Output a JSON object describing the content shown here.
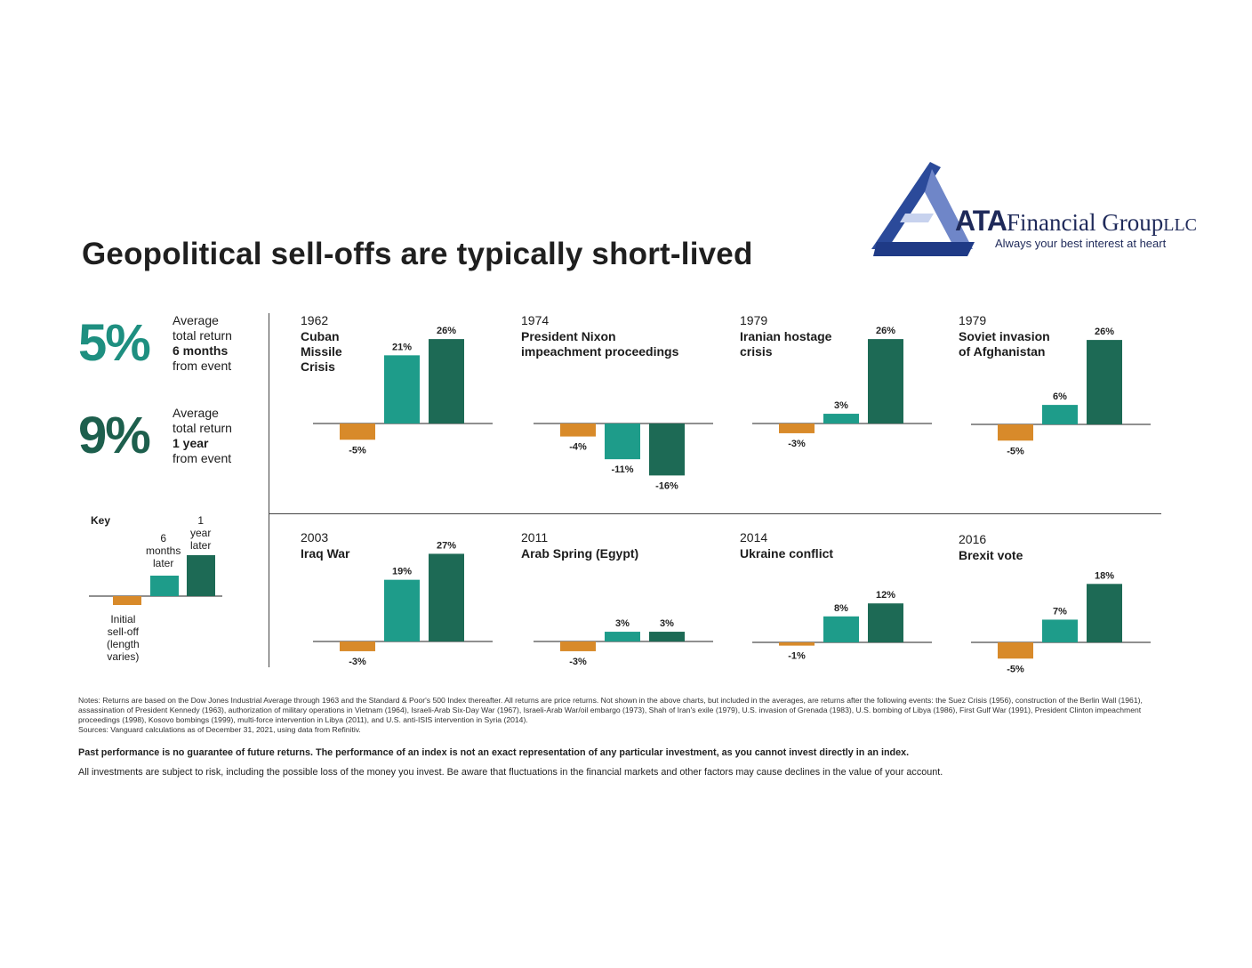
{
  "title": "Geopolitical sell-offs are typically short-lived",
  "logo": {
    "brand_bold": "ATA",
    "brand_rest": "Financial Group",
    "brand_suffix": "LLC",
    "tagline": "Always your best interest at heart"
  },
  "colors": {
    "selloff": "#d88a2a",
    "six_months": "#1e9c8a",
    "one_year": "#1d6a55",
    "teal_text": "#1e8f80",
    "dark_text": "#1d5f4d"
  },
  "stats": [
    {
      "value": "5%",
      "line1": "Average",
      "line2": "total return",
      "line3": "6 months",
      "line4": "from event"
    },
    {
      "value": "9%",
      "line1": "Average",
      "line2": "total return",
      "line3": "1 year",
      "line4": "from event"
    }
  ],
  "key": {
    "title": "Key",
    "initial": [
      "Initial",
      "sell-off",
      "(length",
      "varies)"
    ],
    "six": [
      "6",
      "months",
      "later"
    ],
    "year": [
      "1",
      "year",
      "later"
    ]
  },
  "chart_data": [
    {
      "type": "bar",
      "year": "1962",
      "title": [
        "Cuban",
        "Missile",
        "Crisis"
      ],
      "categories": [
        "Initial sell-off",
        "6 months later",
        "1 year later"
      ],
      "values": [
        -5,
        21,
        26
      ],
      "labels": [
        "-5%",
        "21%",
        "26%"
      ]
    },
    {
      "type": "bar",
      "year": "1974",
      "title": [
        "President Nixon",
        "impeachment proceedings"
      ],
      "categories": [
        "Initial sell-off",
        "6 months later",
        "1 year later"
      ],
      "values": [
        -4,
        -11,
        -16
      ],
      "labels": [
        "-4%",
        "-11%",
        "-16%"
      ]
    },
    {
      "type": "bar",
      "year": "1979",
      "title": [
        "Iranian hostage",
        "crisis"
      ],
      "categories": [
        "Initial sell-off",
        "6 months later",
        "1 year later"
      ],
      "values": [
        -3,
        3,
        26
      ],
      "labels": [
        "-3%",
        "3%",
        "26%"
      ]
    },
    {
      "type": "bar",
      "year": "1979",
      "title": [
        "Soviet invasion",
        "of Afghanistan"
      ],
      "categories": [
        "Initial sell-off",
        "6 months later",
        "1 year later"
      ],
      "values": [
        -5,
        6,
        26
      ],
      "labels": [
        "-5%",
        "6%",
        "26%"
      ]
    },
    {
      "type": "bar",
      "year": "2003",
      "title": [
        "Iraq War"
      ],
      "categories": [
        "Initial sell-off",
        "6 months later",
        "1 year later"
      ],
      "values": [
        -3,
        19,
        27
      ],
      "labels": [
        "-3%",
        "19%",
        "27%"
      ]
    },
    {
      "type": "bar",
      "year": "2011",
      "title": [
        "Arab Spring (Egypt)"
      ],
      "categories": [
        "Initial sell-off",
        "6 months later",
        "1 year later"
      ],
      "values": [
        -3,
        3,
        3
      ],
      "labels": [
        "-3%",
        "3%",
        "3%"
      ]
    },
    {
      "type": "bar",
      "year": "2014",
      "title": [
        "Ukraine conflict"
      ],
      "categories": [
        "Initial sell-off",
        "6 months later",
        "1 year later"
      ],
      "values": [
        -1,
        8,
        12
      ],
      "labels": [
        "-1%",
        "8%",
        "12%"
      ]
    },
    {
      "type": "bar",
      "year": "2016",
      "title": [
        "Brexit vote"
      ],
      "categories": [
        "Initial sell-off",
        "6 months later",
        "1 year later"
      ],
      "values": [
        -5,
        7,
        18
      ],
      "labels": [
        "-5%",
        "7%",
        "18%"
      ]
    }
  ],
  "notes": [
    "Notes: Returns are based on the Dow Jones Industrial Average through 1963 and the Standard & Poor's 500 Index thereafter. All returns are price returns. Not shown in the above charts, but included in the averages, are returns after the following events: the Suez Crisis (1956), construction of the Berlin Wall (1961), assassination of President Kennedy (1963), authorization of military operations in Vietnam (1964), Israeli-Arab Six-Day War (1967), Israeli-Arab War/oil embargo (1973), Shah of Iran's exile (1979), U.S. invasion of Grenada (1983), U.S. bombing of Libya (1986), First Gulf War (1991), President Clinton impeachment proceedings (1998), Kosovo bombings (1999), multi-force intervention in Libya (2011), and U.S. anti-ISIS intervention in Syria (2014).",
    "Sources: Vanguard calculations as of December 31, 2021, using data from Refinitiv."
  ],
  "past_performance": "Past performance is no guarantee of future returns. The performance of an index is not an exact representation of any particular investment, as you cannot invest directly in an index.",
  "risk": "All investments are subject to risk, including the possible loss of the money you invest. Be aware that fluctuations in the financial markets and other factors may cause declines in the value of your account."
}
